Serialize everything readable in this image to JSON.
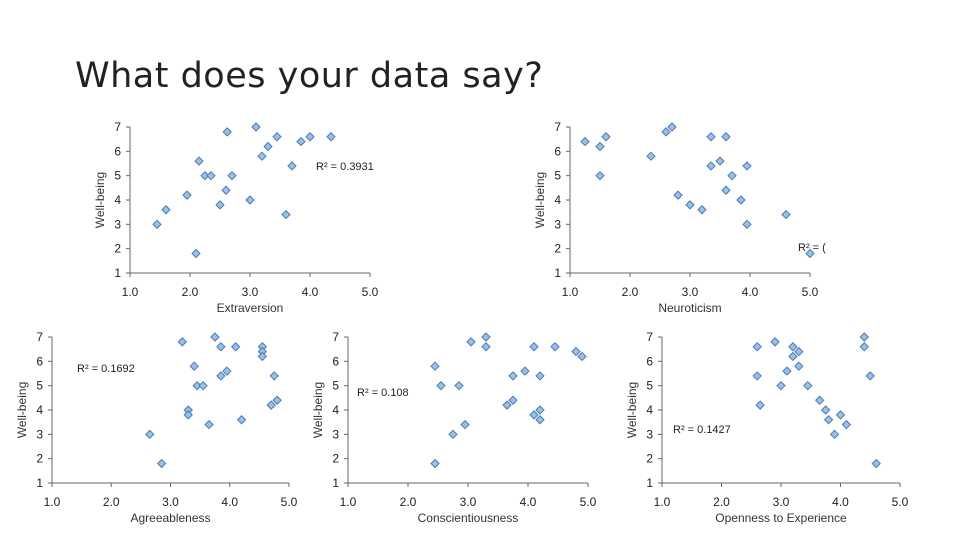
{
  "slide": {
    "title": "What does your data say?"
  },
  "style": {
    "marker_fill": "#9cc0e0",
    "marker_stroke": "#4a7ab8",
    "axis_color": "#666666"
  },
  "chart_data": [
    {
      "type": "scatter",
      "xlabel": "Extraversion",
      "ylabel": "Well-being",
      "r2_label": "R² = 0.3931",
      "xlim": [
        1,
        5
      ],
      "ylim": [
        1,
        7
      ],
      "xticks": [
        "1.0",
        "2.0",
        "3.0",
        "4.0",
        "5.0"
      ],
      "yticks": [
        "1",
        "2",
        "3",
        "4",
        "5",
        "6",
        "7"
      ],
      "x": [
        1.45,
        1.6,
        1.95,
        2.15,
        2.25,
        2.35,
        2.5,
        2.6,
        2.62,
        2.7,
        3.0,
        3.1,
        3.2,
        3.3,
        3.45,
        3.6,
        3.7,
        3.85,
        4.0,
        4.35,
        2.1
      ],
      "y": [
        3.0,
        3.6,
        4.2,
        5.6,
        5.0,
        5.0,
        3.8,
        4.4,
        6.8,
        5.0,
        4.0,
        7.0,
        5.8,
        6.2,
        6.6,
        3.4,
        5.4,
        6.4,
        6.6,
        6.6,
        1.8
      ]
    },
    {
      "type": "scatter",
      "xlabel": "Neuroticism",
      "ylabel": "Well-being",
      "r2_label": "R² = (",
      "xlim": [
        1,
        5
      ],
      "ylim": [
        1,
        7
      ],
      "xticks": [
        "1.0",
        "2.0",
        "3.0",
        "4.0",
        "5.0"
      ],
      "yticks": [
        "1",
        "2",
        "3",
        "4",
        "5",
        "6",
        "7"
      ],
      "x": [
        1.25,
        1.5,
        1.5,
        1.6,
        2.35,
        2.6,
        2.7,
        2.8,
        3.0,
        3.2,
        3.35,
        3.35,
        3.5,
        3.6,
        3.6,
        3.7,
        3.85,
        3.95,
        3.95,
        4.6,
        5.0
      ],
      "y": [
        6.4,
        6.2,
        5.0,
        6.6,
        5.8,
        6.8,
        7.0,
        4.2,
        3.8,
        3.6,
        6.6,
        5.4,
        5.6,
        6.6,
        4.4,
        5.0,
        4.0,
        5.4,
        3.0,
        3.4,
        1.8
      ]
    },
    {
      "type": "scatter",
      "xlabel": "Agreeableness",
      "ylabel": "Well-being",
      "r2_label": "R² = 0.1692",
      "xlim": [
        1,
        5
      ],
      "ylim": [
        1,
        7
      ],
      "xticks": [
        "1.0",
        "2.0",
        "3.0",
        "4.0",
        "5.0"
      ],
      "yticks": [
        "1",
        "2",
        "3",
        "4",
        "5",
        "6",
        "7"
      ],
      "x": [
        2.65,
        2.85,
        3.2,
        3.3,
        3.3,
        3.4,
        3.45,
        3.55,
        3.65,
        3.75,
        3.85,
        3.85,
        3.95,
        4.1,
        4.2,
        4.55,
        4.55,
        4.55,
        4.7,
        4.75,
        4.8
      ],
      "y": [
        3.0,
        1.8,
        6.8,
        4.0,
        3.8,
        5.8,
        5.0,
        5.0,
        3.4,
        7.0,
        6.6,
        5.4,
        5.6,
        6.6,
        3.6,
        6.6,
        6.4,
        6.2,
        4.2,
        5.4,
        4.4
      ]
    },
    {
      "type": "scatter",
      "xlabel": "Conscientiousness",
      "ylabel": "Well-being",
      "r2_label": "R² = 0.108",
      "xlim": [
        1,
        5
      ],
      "ylim": [
        1,
        7
      ],
      "xticks": [
        "1.0",
        "2.0",
        "3.0",
        "4.0",
        "5.0"
      ],
      "yticks": [
        "1",
        "2",
        "3",
        "4",
        "5",
        "6",
        "7"
      ],
      "x": [
        2.45,
        2.45,
        2.55,
        2.75,
        2.85,
        2.95,
        3.05,
        3.3,
        3.3,
        3.65,
        3.75,
        3.75,
        3.95,
        4.1,
        4.1,
        4.2,
        4.2,
        4.2,
        4.45,
        4.8,
        4.9
      ],
      "y": [
        5.8,
        1.8,
        5.0,
        3.0,
        5.0,
        3.4,
        6.8,
        7.0,
        6.6,
        4.2,
        5.4,
        4.4,
        5.6,
        6.6,
        3.8,
        4.0,
        3.6,
        5.4,
        6.6,
        6.4,
        6.2
      ]
    },
    {
      "type": "scatter",
      "xlabel": "Openness to Experience",
      "ylabel": "Well-being",
      "r2_label": "R² = 0.1427",
      "xlim": [
        1,
        5
      ],
      "ylim": [
        1,
        7
      ],
      "xticks": [
        "1.0",
        "2.0",
        "3.0",
        "4.0",
        "5.0"
      ],
      "yticks": [
        "1",
        "2",
        "3",
        "4",
        "5",
        "6",
        "7"
      ],
      "x": [
        2.6,
        2.6,
        2.65,
        2.9,
        3.0,
        3.1,
        3.2,
        3.2,
        3.3,
        3.3,
        3.45,
        3.65,
        3.75,
        3.8,
        3.9,
        4.0,
        4.1,
        4.4,
        4.4,
        4.5,
        4.6
      ],
      "y": [
        6.6,
        5.4,
        4.2,
        6.8,
        5.0,
        5.6,
        6.6,
        6.2,
        6.4,
        5.8,
        5.0,
        4.4,
        4.0,
        3.6,
        3.0,
        3.8,
        3.4,
        7.0,
        6.6,
        5.4,
        1.8
      ]
    }
  ]
}
